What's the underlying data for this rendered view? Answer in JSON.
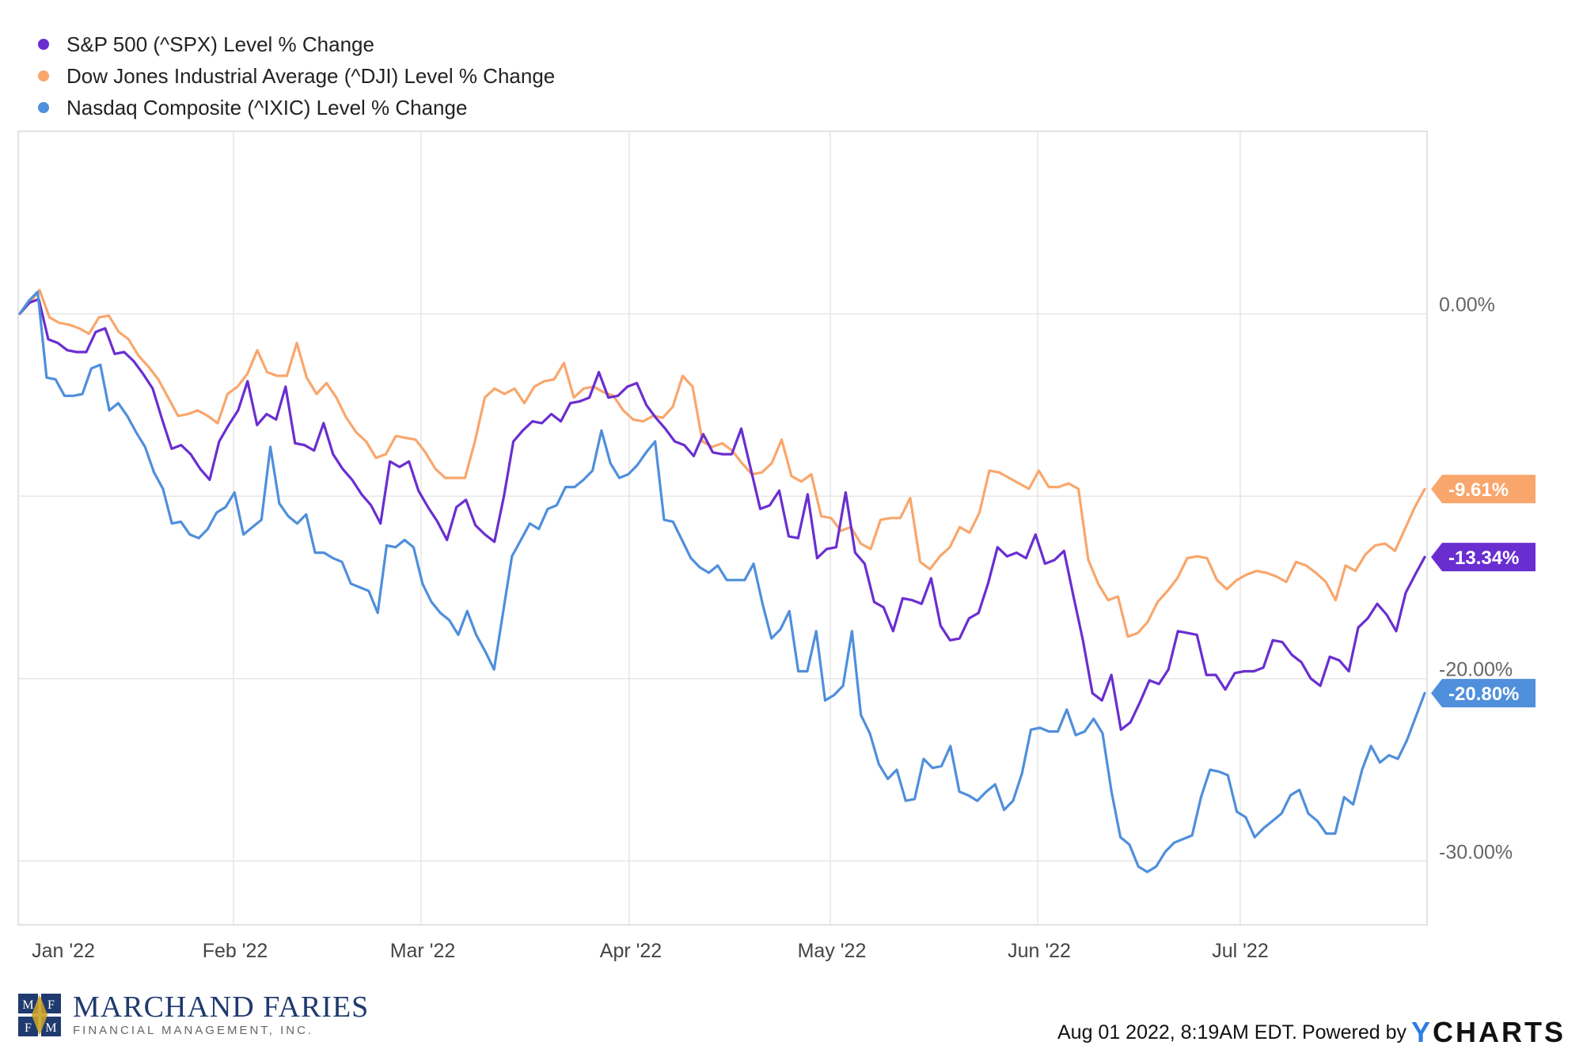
{
  "legend": [
    {
      "label": "S&P 500 (^SPX) Level % Change",
      "color": "#6a2ed0"
    },
    {
      "label": "Dow Jones Industrial Average (^DJI) Level % Change",
      "color": "#f9a66c"
    },
    {
      "label": "Nasdaq Composite (^IXIC) Level % Change",
      "color": "#4f8fdb"
    }
  ],
  "footer": {
    "timestamp": "Aug 01 2022, 8:19AM EDT.",
    "powered_by": "Powered by",
    "brand_y": "Y",
    "brand_rest": "CHARTS"
  },
  "logo": {
    "monogram": [
      "M",
      "F",
      "F",
      "M"
    ],
    "name": "MARCHAND FARIES",
    "subtitle": "FINANCIAL MANAGEMENT, INC."
  },
  "chart_data": {
    "type": "line",
    "title": "",
    "xlabel": "",
    "ylabel": "",
    "ylim": [
      -33.5,
      10
    ],
    "y_ticks": [
      0,
      -20,
      -30
    ],
    "y_tick_labels": [
      "0.00%",
      "-20.00%",
      "-30.00%"
    ],
    "x_ticks": [
      "Jan '22",
      "Feb '22",
      "Mar '22",
      "Apr '22",
      "May '22",
      "Jun '22",
      "Jul '22"
    ],
    "grid": true,
    "legend_position": "top-left",
    "series": [
      {
        "name": "Dow Jones Industrial Average (^DJI) Level % Change",
        "color": "#f9a66c",
        "end_label": "-9.61%",
        "values": [
          0.0,
          0.6,
          1.3,
          -0.2,
          -0.5,
          -0.6,
          -0.8,
          -1.1,
          -0.2,
          -0.1,
          -1.0,
          -1.4,
          -2.3,
          -2.9,
          -3.6,
          -4.6,
          -5.6,
          -5.5,
          -5.3,
          -5.6,
          -6.0,
          -4.4,
          -4.0,
          -3.3,
          -2.0,
          -3.2,
          -3.4,
          -3.4,
          -1.6,
          -3.5,
          -4.4,
          -3.8,
          -4.6,
          -5.7,
          -6.5,
          -7.0,
          -7.9,
          -7.7,
          -6.7,
          -6.8,
          -6.9,
          -7.6,
          -8.5,
          -9.0,
          -9.0,
          -9.0,
          -7.0,
          -4.6,
          -4.1,
          -4.4,
          -4.1,
          -4.9,
          -4.0,
          -3.7,
          -3.6,
          -2.7,
          -4.6,
          -4.1,
          -4.0,
          -4.3,
          -4.5,
          -5.3,
          -5.8,
          -5.9,
          -5.6,
          -5.7,
          -5.1,
          -3.4,
          -4.0,
          -7.0,
          -7.3,
          -7.1,
          -7.5,
          -8.2,
          -8.8,
          -8.7,
          -8.2,
          -6.9,
          -8.9,
          -9.2,
          -8.8,
          -11.1,
          -11.2,
          -11.9,
          -11.7,
          -12.6,
          -12.9,
          -11.3,
          -11.2,
          -11.2,
          -10.1,
          -13.6,
          -14.0,
          -13.3,
          -12.8,
          -11.7,
          -12.0,
          -10.9,
          -8.6,
          -8.7,
          -9.0,
          -9.3,
          -9.6,
          -8.6,
          -9.5,
          -9.5,
          -9.3,
          -9.6,
          -13.5,
          -14.8,
          -15.7,
          -15.5,
          -17.7,
          -17.5,
          -16.9,
          -15.8,
          -15.2,
          -14.5,
          -13.4,
          -13.3,
          -13.4,
          -14.6,
          -15.1,
          -14.6,
          -14.3,
          -14.1,
          -14.2,
          -14.4,
          -14.7,
          -13.6,
          -13.8,
          -14.2,
          -14.7,
          -15.7,
          -13.8,
          -14.1,
          -13.2,
          -12.7,
          -12.6,
          -13.0,
          -11.8,
          -10.6,
          -9.61
        ]
      },
      {
        "name": "S&P 500 (^SPX) Level % Change",
        "color": "#6a2ed0",
        "end_label": "-13.34%",
        "values": [
          0.0,
          0.6,
          0.8,
          -1.4,
          -1.6,
          -2.0,
          -2.1,
          -2.1,
          -1.0,
          -0.8,
          -2.2,
          -2.1,
          -2.6,
          -3.3,
          -4.1,
          -5.8,
          -7.4,
          -7.2,
          -7.7,
          -8.5,
          -9.1,
          -7.0,
          -6.1,
          -5.3,
          -3.7,
          -6.1,
          -5.5,
          -5.8,
          -4.0,
          -7.1,
          -7.2,
          -7.5,
          -6.0,
          -7.7,
          -8.5,
          -9.1,
          -9.9,
          -10.5,
          -11.5,
          -8.1,
          -8.4,
          -8.1,
          -9.7,
          -10.6,
          -11.4,
          -12.4,
          -10.6,
          -10.2,
          -11.6,
          -12.1,
          -12.5,
          -10.0,
          -7.0,
          -6.4,
          -5.9,
          -6.0,
          -5.5,
          -5.9,
          -4.9,
          -4.8,
          -4.6,
          -3.2,
          -4.6,
          -4.5,
          -4.0,
          -3.8,
          -5.0,
          -5.7,
          -6.3,
          -7.0,
          -7.2,
          -7.8,
          -6.6,
          -7.6,
          -7.7,
          -7.7,
          -6.3,
          -8.5,
          -10.7,
          -10.5,
          -9.7,
          -12.2,
          -12.3,
          -9.9,
          -13.4,
          -12.9,
          -12.8,
          -9.8,
          -13.1,
          -13.7,
          -15.8,
          -16.1,
          -17.4,
          -15.6,
          -15.7,
          -15.9,
          -14.5,
          -17.1,
          -17.9,
          -17.8,
          -16.7,
          -16.4,
          -14.8,
          -12.8,
          -13.3,
          -13.1,
          -13.4,
          -12.1,
          -13.7,
          -13.5,
          -13.0,
          -15.5,
          -17.9,
          -20.8,
          -21.2,
          -19.8,
          -22.8,
          -22.4,
          -21.3,
          -20.1,
          -20.3,
          -19.5,
          -17.4,
          -17.5,
          -17.6,
          -19.8,
          -19.8,
          -20.6,
          -19.7,
          -19.6,
          -19.6,
          -19.4,
          -17.9,
          -18.0,
          -18.7,
          -19.1,
          -20.0,
          -20.4,
          -18.8,
          -19.0,
          -19.6,
          -17.2,
          -16.7,
          -15.9,
          -16.5,
          -17.4,
          -15.3,
          -14.3,
          -13.34
        ]
      },
      {
        "name": "Nasdaq Composite (^IXIC) Level % Change",
        "color": "#4f8fdb",
        "end_label": "-20.80%",
        "values": [
          0.0,
          0.7,
          1.2,
          -3.5,
          -3.6,
          -4.5,
          -4.5,
          -4.4,
          -3.0,
          -2.8,
          -5.3,
          -4.9,
          -5.6,
          -6.5,
          -7.3,
          -8.7,
          -9.6,
          -11.5,
          -11.4,
          -12.1,
          -12.3,
          -11.8,
          -10.9,
          -10.6,
          -9.8,
          -12.1,
          -11.7,
          -11.3,
          -7.3,
          -10.4,
          -11.1,
          -11.5,
          -11.0,
          -13.1,
          -13.1,
          -13.4,
          -13.6,
          -14.8,
          -15.0,
          -15.2,
          -16.4,
          -12.7,
          -12.8,
          -12.4,
          -12.8,
          -14.8,
          -15.8,
          -16.4,
          -16.8,
          -17.6,
          -16.3,
          -17.6,
          -18.5,
          -19.5,
          -16.4,
          -13.3,
          -12.4,
          -11.5,
          -11.8,
          -10.7,
          -10.5,
          -9.5,
          -9.5,
          -9.1,
          -8.6,
          -6.4,
          -8.2,
          -9.0,
          -8.8,
          -8.3,
          -7.6,
          -7.0,
          -11.3,
          -11.4,
          -12.4,
          -13.4,
          -13.9,
          -14.2,
          -13.8,
          -14.6,
          -14.6,
          -14.6,
          -13.7,
          -15.9,
          -17.8,
          -17.3,
          -16.3,
          -19.6,
          -19.6,
          -17.4,
          -21.2,
          -20.9,
          -20.4,
          -17.4,
          -22.0,
          -23.0,
          -24.7,
          -25.5,
          -25.0,
          -26.7,
          -26.6,
          -24.4,
          -24.9,
          -24.8,
          -23.7,
          -26.2,
          -26.4,
          -26.7,
          -26.2,
          -25.8,
          -27.2,
          -26.7,
          -25.2,
          -22.8,
          -22.7,
          -22.9,
          -22.9,
          -21.7,
          -23.1,
          -22.9,
          -22.2,
          -23.0,
          -26.2,
          -28.7,
          -29.1,
          -30.3,
          -30.6,
          -30.3,
          -29.5,
          -29.0,
          -28.8,
          -28.6,
          -26.5,
          -25.0,
          -25.1,
          -25.3,
          -27.3,
          -27.6,
          -28.7,
          -28.2,
          -27.8,
          -27.4,
          -26.4,
          -26.1,
          -27.4,
          -27.8,
          -28.5,
          -28.5,
          -26.5,
          -26.9,
          -25.0,
          -23.7,
          -24.6,
          -24.2,
          -24.4,
          -23.4,
          -22.1,
          -20.8
        ]
      }
    ]
  }
}
